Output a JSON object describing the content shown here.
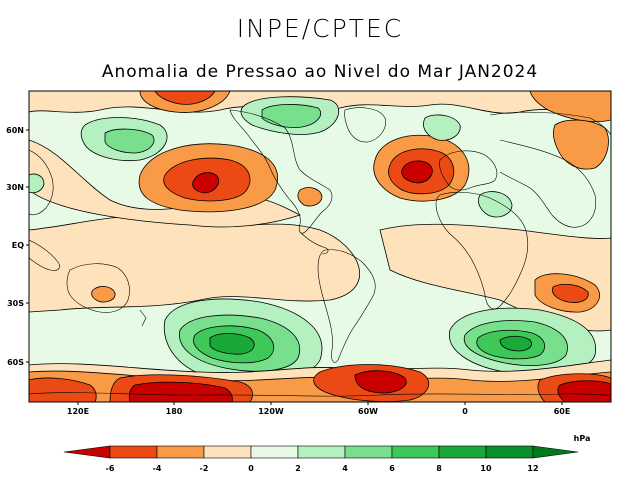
{
  "header": {
    "institution": "INPE/CPTEC",
    "title": "Anomalia de Pressao ao Nivel do Mar JAN2024"
  },
  "axes": {
    "lat_labels": [
      "60N",
      "30N",
      "EQ",
      "30S",
      "60S"
    ],
    "lon_labels": [
      "120E",
      "180",
      "120W",
      "60W",
      "0",
      "60E"
    ]
  },
  "colorbar": {
    "unit": "hPa",
    "ticks": [
      "-6",
      "-4",
      "-2",
      "0",
      "2",
      "4",
      "6",
      "8",
      "10",
      "12"
    ],
    "colors": {
      "lt_-6": "#c80000",
      "m6_m4": "#eb4a14",
      "m4_m2": "#f99a46",
      "m2_0": "#fde2bc",
      "0_2": "#e6fae6",
      "2_4": "#b4f0c0",
      "4_6": "#78e08c",
      "6_8": "#3ec85a",
      "8_10": "#1aa83a",
      "10_12": "#08902a",
      "gt_12": "#007a20"
    }
  }
}
